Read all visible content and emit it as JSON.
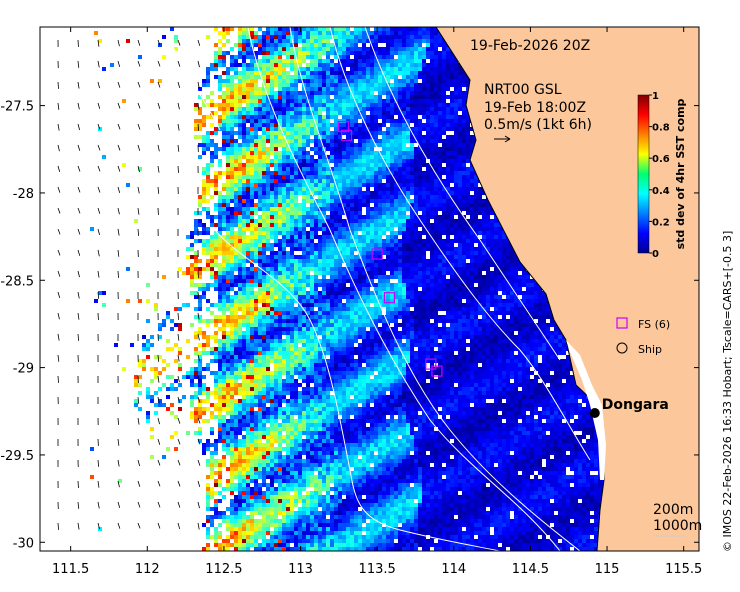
{
  "chart_data": {
    "type": "heatmap",
    "title": "19-Feb-2026 20Z",
    "current_annotation": {
      "line1": "NRT00 GSL",
      "line2": "19-Feb 18:00Z",
      "line3": "0.5m/s (1kt 6h)"
    },
    "colorbar": {
      "label": "std dev of 4hr SST comp",
      "min": 0,
      "max": 1,
      "ticks": [
        "0",
        "0.2",
        "0.4",
        "0.6",
        "0.8",
        "1"
      ]
    },
    "x_axis": {
      "range": [
        111.3,
        115.6
      ],
      "ticks": [
        111.5,
        112,
        112.5,
        113,
        113.5,
        114,
        114.5,
        115,
        115.5
      ],
      "tick_labels": [
        "111.5",
        "112",
        "112.5",
        "113",
        "113.5",
        "114",
        "114.5",
        "115",
        "115.5"
      ]
    },
    "y_axis": {
      "range": [
        -30.05,
        -27.05
      ],
      "ticks": [
        -27.5,
        -28,
        -28.5,
        -29,
        -29.5,
        -30
      ],
      "tick_labels": [
        "-27.5",
        "-28",
        "-28.5",
        "-29",
        "-29.5",
        "-30"
      ]
    },
    "legend": {
      "fs_label": "FS (6)",
      "ship_label": "Ship"
    },
    "fs_markers": [
      {
        "lon": 113.28,
        "lat": -27.62
      },
      {
        "lon": 113.3,
        "lat": -27.67
      },
      {
        "lon": 113.5,
        "lat": -28.35
      },
      {
        "lon": 113.58,
        "lat": -28.6
      },
      {
        "lon": 113.85,
        "lat": -28.98
      },
      {
        "lon": 113.89,
        "lat": -29.02
      }
    ],
    "place": {
      "name": "Dongara",
      "lon": 114.92,
      "lat": -29.26
    },
    "depth_labels": [
      "200m",
      "1000m"
    ],
    "credit": "© IMOS 22-Feb-2026 16:33 Hobart; Tscale=CARS+[-0.5 3]"
  },
  "colors": {
    "land": "#fcc89b",
    "coast": "#000000",
    "contour": "#ffffff",
    "fs_marker": "#cc00ff"
  }
}
